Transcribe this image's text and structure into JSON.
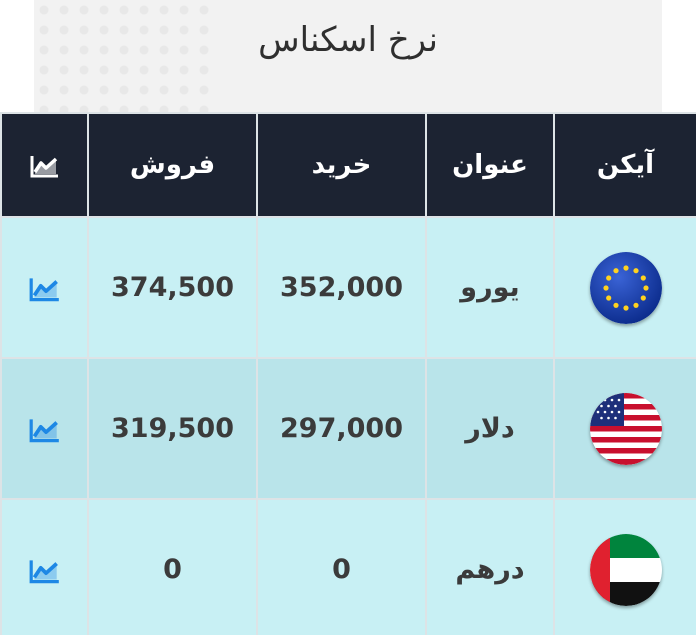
{
  "title": "نرخ اسکناس",
  "header": {
    "icon_col": "آیکن",
    "name_col": "عنوان",
    "buy_col": "خرید",
    "sell_col": "فروش",
    "chart_col_icon": "chart-icon"
  },
  "rows": [
    {
      "flag_icon": "eu-flag-icon",
      "name": "یورو",
      "buy": "352,000",
      "sell": "374,500",
      "chart_icon": "trend-chart-icon"
    },
    {
      "flag_icon": "us-flag-icon",
      "name": "دلار",
      "buy": "297,000",
      "sell": "319,500",
      "chart_icon": "trend-chart-icon"
    },
    {
      "flag_icon": "uae-flag-icon",
      "name": "درهم",
      "buy": "0",
      "sell": "0",
      "chart_icon": "trend-chart-icon"
    }
  ],
  "colors": {
    "header_bg": "#1c2332",
    "row_light": "#c8f0f4",
    "row_dark": "#b9e4ea",
    "chart_icon": "#1e88e5"
  }
}
